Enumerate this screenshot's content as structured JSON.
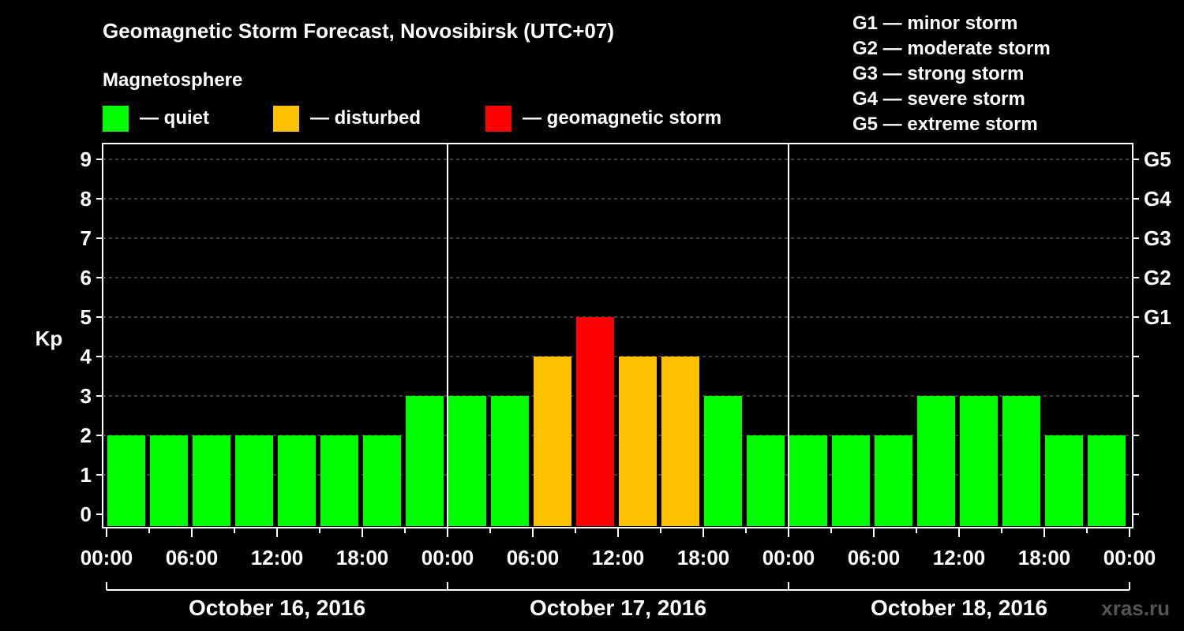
{
  "chart_data": {
    "type": "bar",
    "title": "Geomagnetic Storm Forecast, Novosibirsk (UTC+07)",
    "ylabel": "Kp",
    "ylim": [
      0,
      9
    ],
    "y_ticks": [
      "0",
      "1",
      "2",
      "3",
      "4",
      "5",
      "6",
      "7",
      "8",
      "9"
    ],
    "right_ticks": [
      {
        "kp": 5,
        "label": "G1"
      },
      {
        "kp": 6,
        "label": "G2"
      },
      {
        "kp": 7,
        "label": "G3"
      },
      {
        "kp": 8,
        "label": "G4"
      },
      {
        "kp": 9,
        "label": "G5"
      }
    ],
    "grid": true,
    "x_tick_labels": [
      "00:00",
      "06:00",
      "12:00",
      "18:00",
      "00:00",
      "06:00",
      "12:00",
      "18:00",
      "00:00",
      "06:00",
      "12:00",
      "18:00",
      "00:00"
    ],
    "days": [
      "October 16, 2016",
      "October 17, 2016",
      "October 18, 2016"
    ],
    "interval_hours": 3,
    "values": [
      2,
      2,
      2,
      2,
      2,
      2,
      2,
      3,
      3,
      3,
      4,
      5,
      4,
      4,
      3,
      2,
      2,
      2,
      2,
      3,
      3,
      3,
      2,
      2
    ],
    "thresholds": {
      "disturbed": 4,
      "storm": 5
    }
  },
  "legend": {
    "section_label": "Magnetosphere",
    "items": [
      {
        "label": "— quiet",
        "color": "#00ff00"
      },
      {
        "label": "— disturbed",
        "color": "#ffc000"
      },
      {
        "label": "— geomagnetic storm",
        "color": "#ff0000"
      }
    ]
  },
  "storm_scale": [
    "G1 — minor storm",
    "G2 — moderate storm",
    "G3 — strong storm",
    "G4 — severe storm",
    "G5 — extreme storm"
  ],
  "watermark": "xras.ru",
  "colors": {
    "quiet": "#00ff00",
    "disturbed": "#ffc000",
    "storm": "#ff0000",
    "background": "#000000",
    "foreground": "#ffffff"
  }
}
